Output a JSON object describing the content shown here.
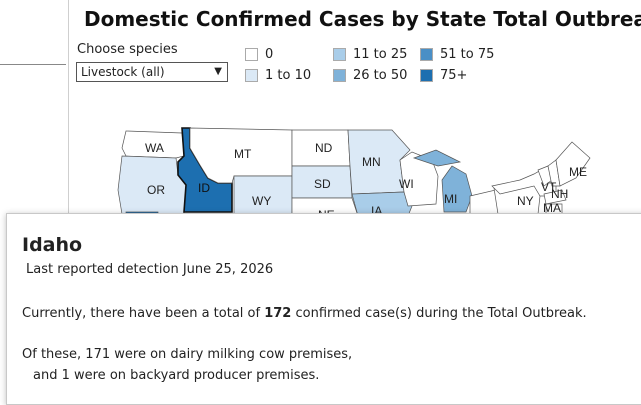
{
  "title": "Domestic Confirmed Cases by State Total Outbreak",
  "filter": {
    "label": "Choose species",
    "selected": "Livestock (all)"
  },
  "legend": [
    {
      "label": "0",
      "color": "#ffffff"
    },
    {
      "label": "1 to 10",
      "color": "#dbe9f6"
    },
    {
      "label": "11 to 25",
      "color": "#a9cde9"
    },
    {
      "label": "26 to 50",
      "color": "#7fb2d9"
    },
    {
      "label": "51 to 75",
      "color": "#4a8fc6"
    },
    {
      "label": "75+",
      "color": "#1d6fb0"
    }
  ],
  "states": [
    {
      "abbr": "WA",
      "color": "#ffffff"
    },
    {
      "abbr": "OR",
      "color": "#dbe9f6"
    },
    {
      "abbr": "ID",
      "color": "#1d6fb0"
    },
    {
      "abbr": "MT",
      "color": "#ffffff"
    },
    {
      "abbr": "WY",
      "color": "#dbe9f6"
    },
    {
      "abbr": "ND",
      "color": "#ffffff"
    },
    {
      "abbr": "SD",
      "color": "#dbe9f6"
    },
    {
      "abbr": "NE",
      "color": "#ffffff"
    },
    {
      "abbr": "MN",
      "color": "#dbe9f6"
    },
    {
      "abbr": "IA",
      "color": "#a9cde9"
    },
    {
      "abbr": "WI",
      "color": "#ffffff"
    },
    {
      "abbr": "MI",
      "color": "#7fb2d9"
    },
    {
      "abbr": "NY",
      "color": "#ffffff"
    },
    {
      "abbr": "VT",
      "color": "#ffffff"
    },
    {
      "abbr": "NH",
      "color": "#ffffff"
    },
    {
      "abbr": "ME",
      "color": "#ffffff"
    },
    {
      "abbr": "MA",
      "color": "#ffffff"
    }
  ],
  "tooltip": {
    "state": "Idaho",
    "last_reported": "Last reported detection June 25, 2026",
    "total_prefix": "Currently, there have been a total of ",
    "total_count": "172",
    "total_suffix": " confirmed case(s) during the Total Outbreak.",
    "breakdown_line1": "Of these, 171 were on dairy milking cow premises,",
    "breakdown_line2": "and 1 were on backyard producer premises."
  }
}
